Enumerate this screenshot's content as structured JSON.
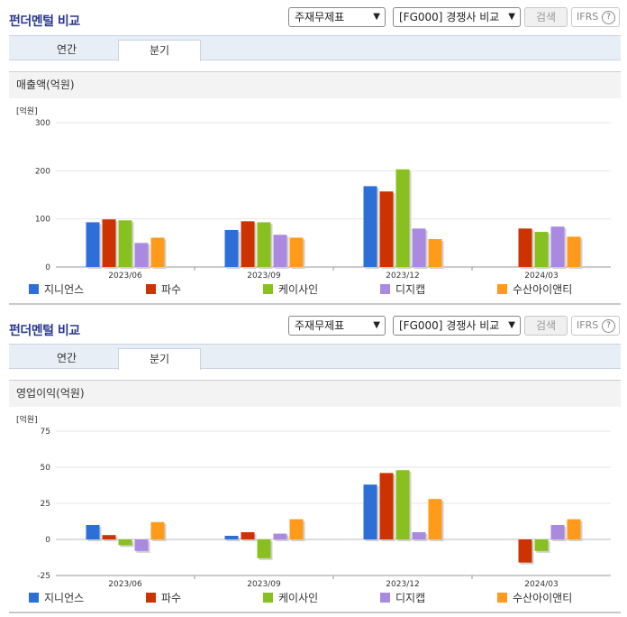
{
  "sections": [
    {
      "title": "펀더멘털 비교",
      "select1": "주재무제표",
      "select2": "[FG000] 경쟁사 비교",
      "search_label": "검색",
      "ifrs_label": "IFRS",
      "ifrs_help": "?",
      "tabs": [
        {
          "label": "연간",
          "active": false
        },
        {
          "label": "분기",
          "active": true
        }
      ],
      "metric": "매출액(억원)"
    },
    {
      "title": "펀더멘털 비교",
      "select1": "주재무제표",
      "select2": "[FG000] 경쟁사 비교",
      "search_label": "검색",
      "ifrs_label": "IFRS",
      "ifrs_help": "?",
      "tabs": [
        {
          "label": "연간",
          "active": false
        },
        {
          "label": "분기",
          "active": true
        }
      ],
      "metric": "영업이익(억원)"
    }
  ],
  "colors": [
    "#2d6fd8",
    "#cc3300",
    "#88c020",
    "#a98ae0",
    "#ff9a1a"
  ],
  "chart_data": [
    {
      "type": "bar",
      "unit": "[억원]",
      "categories": [
        "2023/06",
        "2023/09",
        "2023/12",
        "2024/03"
      ],
      "ylim": [
        0,
        300
      ],
      "yticks": [
        0,
        100,
        200,
        300
      ],
      "series": [
        {
          "name": "지니언스",
          "values": [
            93,
            77,
            168,
            null
          ]
        },
        {
          "name": "파수",
          "values": [
            99,
            95,
            157,
            80
          ]
        },
        {
          "name": "케이사인",
          "values": [
            97,
            93,
            203,
            73
          ]
        },
        {
          "name": "디지캡",
          "values": [
            50,
            67,
            80,
            84
          ]
        },
        {
          "name": "수산아이앤티",
          "values": [
            61,
            61,
            58,
            63
          ]
        }
      ]
    },
    {
      "type": "bar",
      "unit": "[억원]",
      "categories": [
        "2023/06",
        "2023/09",
        "2023/12",
        "2024/03"
      ],
      "ylim": [
        -25,
        75
      ],
      "yticks": [
        -25,
        0,
        25,
        50,
        75
      ],
      "series": [
        {
          "name": "지니언스",
          "values": [
            10,
            2.5,
            38,
            null
          ]
        },
        {
          "name": "파수",
          "values": [
            3,
            5,
            46,
            -16
          ]
        },
        {
          "name": "케이사인",
          "values": [
            -4,
            -13,
            48,
            -8
          ]
        },
        {
          "name": "디지캡",
          "values": [
            -8,
            4,
            5,
            10
          ]
        },
        {
          "name": "수산아이앤티",
          "values": [
            12,
            14,
            28,
            14
          ]
        }
      ]
    }
  ]
}
